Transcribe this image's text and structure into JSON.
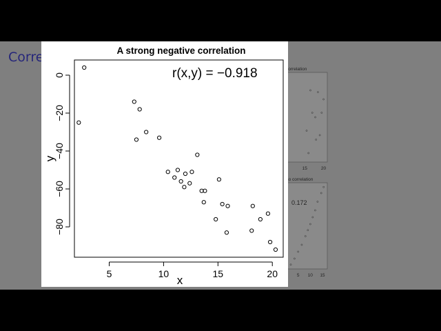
{
  "slide": {
    "title": "Correlation"
  },
  "chart_data": {
    "type": "scatter",
    "title": "A strong negative correlation",
    "xlabel": "x",
    "ylabel": "y",
    "annotation": "r(x,y) =  −0.918",
    "xlim": [
      1.8,
      21.0
    ],
    "ylim": [
      -96,
      8
    ],
    "x_ticks": [
      5,
      10,
      15,
      20
    ],
    "y_ticks": [
      0,
      -20,
      -40,
      -60,
      -80
    ],
    "x_tick_labels": [
      "5",
      "10",
      "15",
      "20"
    ],
    "y_tick_labels": [
      "0",
      "−20",
      "−40",
      "−60",
      "−80"
    ],
    "grid": false,
    "points": [
      [
        2.2,
        -25
      ],
      [
        2.7,
        4
      ],
      [
        7.3,
        -14
      ],
      [
        7.5,
        -34
      ],
      [
        7.8,
        -18
      ],
      [
        8.4,
        -30
      ],
      [
        9.6,
        -33
      ],
      [
        10.4,
        -51
      ],
      [
        11.0,
        -54
      ],
      [
        11.3,
        -50
      ],
      [
        11.6,
        -56
      ],
      [
        11.9,
        -59
      ],
      [
        12.0,
        -52
      ],
      [
        12.4,
        -57
      ],
      [
        12.6,
        -51
      ],
      [
        13.1,
        -42
      ],
      [
        13.5,
        -61
      ],
      [
        13.7,
        -67
      ],
      [
        13.8,
        -61
      ],
      [
        14.8,
        -76
      ],
      [
        15.1,
        -55
      ],
      [
        15.4,
        -68
      ],
      [
        15.9,
        -69
      ],
      [
        15.8,
        -83
      ],
      [
        18.1,
        -82
      ],
      [
        18.2,
        -69
      ],
      [
        18.9,
        -76
      ],
      [
        19.6,
        -73
      ],
      [
        19.8,
        -88
      ],
      [
        20.3,
        -92
      ]
    ]
  },
  "background_plots": [
    {
      "title": "correlation",
      "x_tick_labels": [
        "15",
        "20"
      ],
      "x": [
        15.5,
        16.5,
        17.0,
        17.8,
        18.5,
        19.0,
        19.5,
        20.0,
        16.0,
        18.0
      ],
      "y": [
        0.35,
        0.8,
        0.55,
        0.5,
        0.78,
        0.3,
        0.55,
        0.7,
        0.1,
        0.25
      ]
    },
    {
      "title": "no correlation",
      "annotation": "0.172",
      "x_tick_labels": [
        "5",
        "10",
        "15"
      ],
      "x": [
        2,
        3.5,
        5,
        6.5,
        8,
        9,
        10,
        11,
        12,
        13,
        14.5,
        15.5
      ],
      "y": [
        0.05,
        0.12,
        0.2,
        0.28,
        0.38,
        0.45,
        0.52,
        0.6,
        0.68,
        0.78,
        0.88,
        0.95
      ]
    }
  ]
}
